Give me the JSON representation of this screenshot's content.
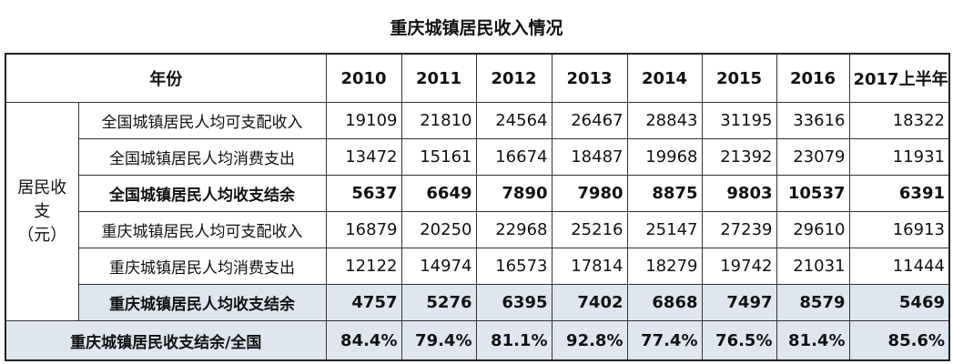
{
  "title": "重庆城镇居民收入情况",
  "table": {
    "header": [
      "年份",
      "2010",
      "2011",
      "2012",
      "2013",
      "2014",
      "2015",
      "2016",
      "2017上半年"
    ],
    "group_label": [
      "居民收",
      "支",
      "（元）"
    ],
    "rows": [
      {
        "label": "全国城镇居民人均可支配收入",
        "cells": [
          19109,
          21810,
          24564,
          26467,
          28843,
          31195,
          33616,
          18322
        ]
      },
      {
        "label": "全国城镇居民人均消费支出",
        "cells": [
          13472,
          15161,
          16674,
          18487,
          19968,
          21392,
          23079,
          11931
        ]
      },
      {
        "label": "全国城镇居民人均收支结余",
        "cells": [
          5637,
          6649,
          7890,
          7980,
          8875,
          9803,
          10537,
          6391
        ]
      },
      {
        "label": "重庆城镇居民人均可支配收入",
        "cells": [
          16879,
          20250,
          22968,
          25216,
          25147,
          27239,
          29610,
          16913
        ]
      },
      {
        "label": "重庆城镇居民人均消费支出",
        "cells": [
          12122,
          14974,
          16573,
          17814,
          18279,
          19742,
          21031,
          11444
        ]
      },
      {
        "label": "重庆城镇居民人均收支结余",
        "cells": [
          4757,
          5276,
          6395,
          7402,
          6868,
          7497,
          8579,
          5469
        ]
      },
      {
        "label": "重庆城镇居民收支结余/全国",
        "cells": [
          "84.4%",
          "79.4%",
          "81.1%",
          "92.8%",
          "77.4%",
          "76.5%",
          "81.4%",
          "85.6%"
        ]
      }
    ]
  }
}
